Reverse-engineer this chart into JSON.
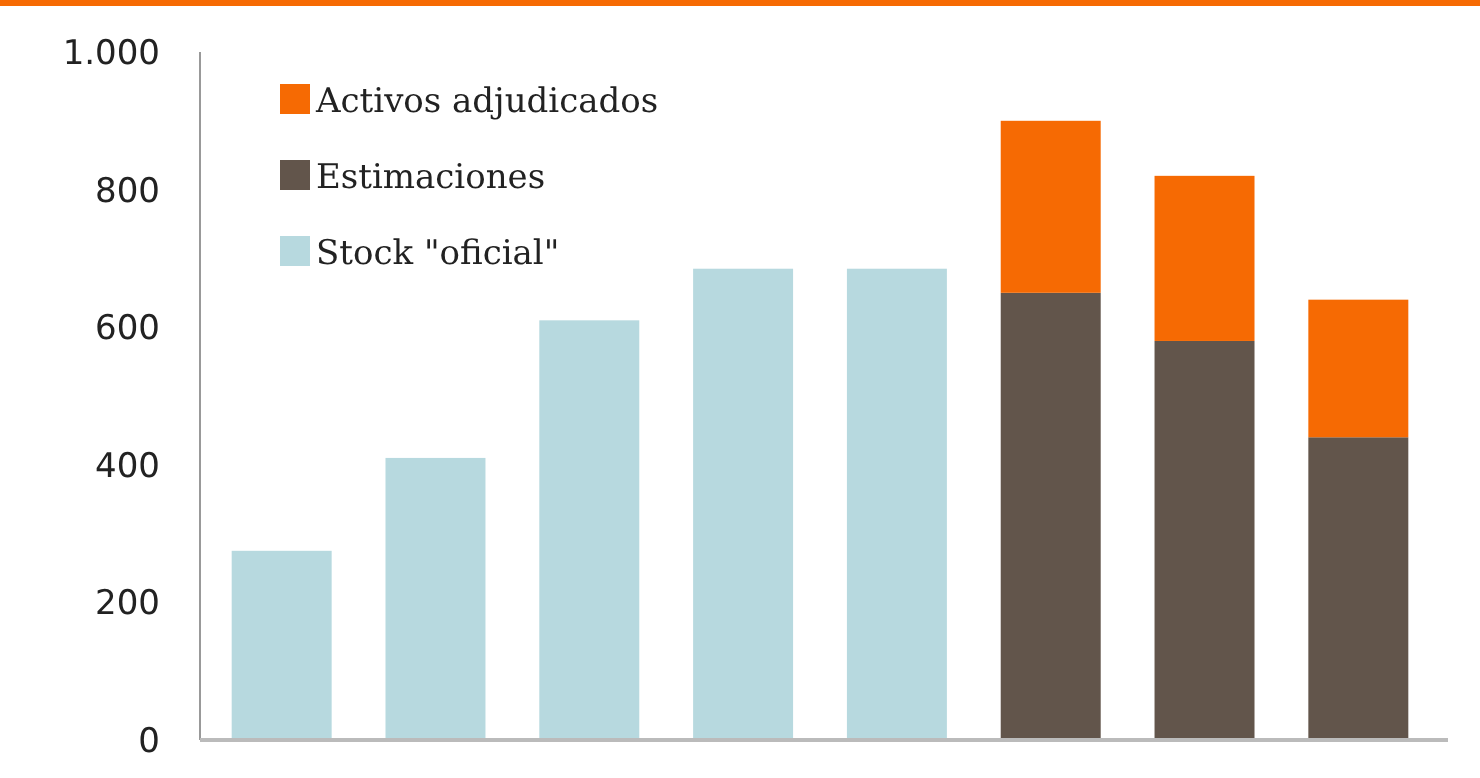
{
  "chart_data": {
    "type": "bar",
    "stacked": true,
    "categories": [
      null,
      null,
      null,
      null,
      null,
      null,
      null,
      null
    ],
    "series": [
      {
        "name": "Stock \"oficial\"",
        "color": "#b7d9df",
        "values": [
          275,
          410,
          610,
          685,
          685,
          null,
          null,
          null
        ]
      },
      {
        "name": "Estimaciones",
        "color": "#62554b",
        "values": [
          null,
          null,
          null,
          null,
          null,
          650,
          580,
          440
        ]
      },
      {
        "name": "Activos adjudicados",
        "color": "#f66a03",
        "values": [
          null,
          null,
          null,
          null,
          null,
          250,
          240,
          200
        ]
      }
    ],
    "ylim": [
      0,
      1000
    ],
    "yticks": [
      0,
      200,
      400,
      600,
      800,
      {
        "value": 1000,
        "label": "1.000"
      }
    ],
    "grid": false,
    "legend": "top left"
  }
}
